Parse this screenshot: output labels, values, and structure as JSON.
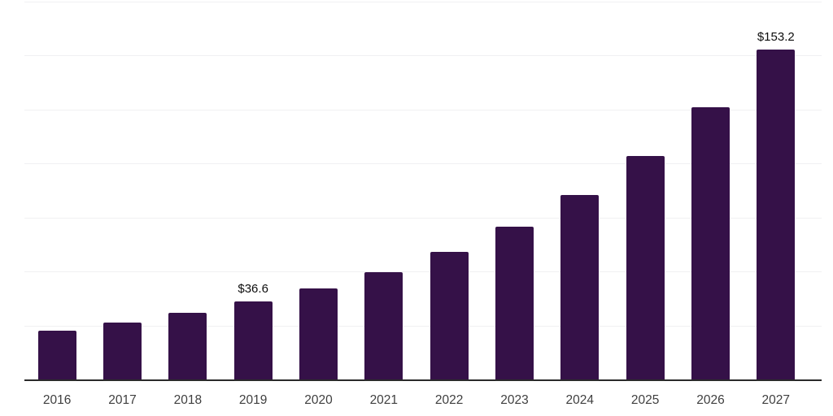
{
  "chart_data": {
    "type": "bar",
    "categories": [
      "2016",
      "2017",
      "2018",
      "2019",
      "2020",
      "2021",
      "2022",
      "2023",
      "2024",
      "2025",
      "2026",
      "2027"
    ],
    "values": [
      23.1,
      26.9,
      31.3,
      36.6,
      42.4,
      50.2,
      59.4,
      71.0,
      85.7,
      103.9,
      126.6,
      153.2
    ],
    "data_labels": {
      "2019": "$36.6",
      "2027": "$153.2"
    },
    "title": "",
    "xlabel": "",
    "ylabel": "",
    "ylim": [
      0,
      175
    ],
    "gridline_values": [
      25,
      50,
      75,
      100,
      125,
      150,
      175
    ],
    "grid": "horizontal",
    "legend": "none",
    "y_tick_labels_visible": false,
    "currency_prefix": "$",
    "bar_color": "#351148"
  },
  "colors": {
    "background": "#ffffff",
    "bar": "#351148",
    "axis_line": "#2b2b2b",
    "gridline": "#f0f0f2",
    "x_tick_label": "#3f3f3f",
    "value_label": "#0d0d0d"
  }
}
